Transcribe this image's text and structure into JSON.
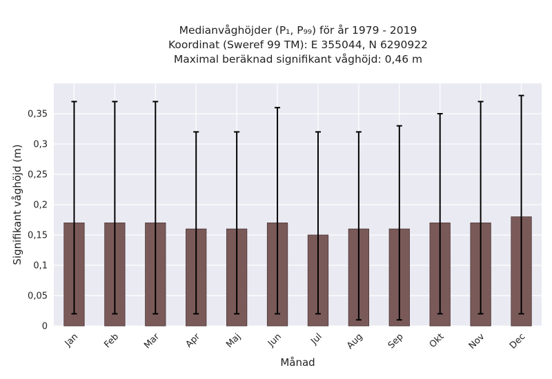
{
  "chart_data": {
    "type": "bar",
    "title_lines": [
      "Medianvåghöjder (P₁, P₉₉) för år 1979 - 2019",
      "Koordinat (Sweref 99 TM): E 355044, N 6290922",
      "Maximal beräknad signifikant våghöjd: 0,46 m"
    ],
    "xlabel": "Månad",
    "ylabel": "Signifikant våghöjd (m)",
    "categories": [
      "Jan",
      "Feb",
      "Mar",
      "Apr",
      "Maj",
      "Jun",
      "Jul",
      "Aug",
      "Sep",
      "Okt",
      "Nov",
      "Dec"
    ],
    "series": [
      {
        "values": [
          0.17,
          0.17,
          0.17,
          0.16,
          0.16,
          0.17,
          0.15,
          0.16,
          0.16,
          0.17,
          0.17,
          0.18
        ],
        "error_low": [
          0.02,
          0.02,
          0.02,
          0.02,
          0.02,
          0.02,
          0.02,
          0.01,
          0.01,
          0.02,
          0.02,
          0.02
        ],
        "error_high": [
          0.37,
          0.37,
          0.37,
          0.32,
          0.32,
          0.36,
          0.32,
          0.32,
          0.33,
          0.35,
          0.37,
          0.38
        ],
        "color": "#7a5a59"
      }
    ],
    "yticks": [
      "0",
      "0,05",
      "0,1",
      "0,15",
      "0,2",
      "0,25",
      "0,3",
      "0,35"
    ],
    "ylim": [
      0,
      0.4
    ],
    "grid": true,
    "background": "#eaeaf2"
  }
}
